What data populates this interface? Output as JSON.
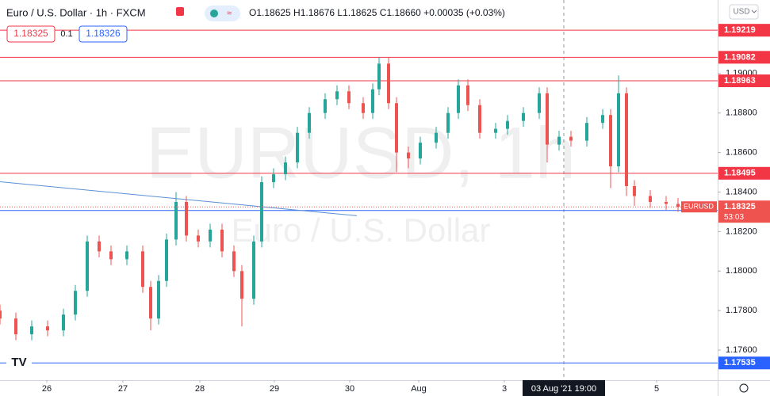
{
  "header": {
    "symbol": "Euro / U.S. Dollar · 1h · FXCM",
    "ohlc": "O1.18625 H1.18676 L1.18625 C1.18660 +0.00035 (+0.03%)",
    "sell": "1.18325",
    "spread": "0.1",
    "buy": "1.18326",
    "currency": "USD"
  },
  "chart_data": {
    "type": "candlestick",
    "watermark": "EURUSD, 1h",
    "watermark_sub": "Euro / U.S. Dollar",
    "up_color": "#26a69a",
    "down_color": "#ef5350",
    "grid": false,
    "xlim": [
      0,
      226.25
    ],
    "ylim": [
      1.17448,
      1.19372
    ],
    "xticks": [
      {
        "value": 14.75,
        "label": "26"
      },
      {
        "value": 38.75,
        "label": "27"
      },
      {
        "value": 63,
        "label": "28"
      },
      {
        "value": 86.5,
        "label": "29"
      },
      {
        "value": 110.25,
        "label": "30"
      },
      {
        "value": 132,
        "label": "Aug"
      },
      {
        "value": 159,
        "label": "3"
      },
      {
        "value": 207,
        "label": "5"
      }
    ],
    "yticks": [
      {
        "value": 1.19,
        "label": "1.19000"
      },
      {
        "value": 1.188,
        "label": "1.18800"
      },
      {
        "value": 1.186,
        "label": "1.18600"
      },
      {
        "value": 1.184,
        "label": "1.18400"
      },
      {
        "value": 1.182,
        "label": "1.18200"
      },
      {
        "value": 1.18,
        "label": "1.18000"
      },
      {
        "value": 1.178,
        "label": "1.17800"
      },
      {
        "value": 1.176,
        "label": "1.17600"
      }
    ],
    "x": [
      0,
      5,
      10,
      15,
      20,
      23.75,
      27.5,
      31.25,
      35,
      40,
      45,
      47.5,
      50,
      52.5,
      55.5,
      58.75,
      62.5,
      66.25,
      70,
      73.75,
      76.25,
      80,
      82.5,
      86.25,
      90,
      93.75,
      97.5,
      102.5,
      106.25,
      110,
      114.5,
      117.5,
      119.5,
      122.5,
      125,
      128.75,
      132.5,
      137.5,
      141.25,
      144.5,
      147.5,
      151.25,
      156.25,
      160,
      165,
      170,
      172.5,
      176.25,
      180,
      185,
      190,
      192.5,
      195,
      197.5,
      200,
      205,
      210,
      213.75
    ],
    "open": [
      1.178,
      1.1776,
      1.1768,
      1.1772,
      1.177,
      1.1778,
      1.179,
      1.1815,
      1.181,
      1.1806,
      1.181,
      1.1792,
      1.1776,
      1.1795,
      1.1816,
      1.1835,
      1.1818,
      1.1815,
      1.1821,
      1.181,
      1.18,
      1.1786,
      1.1815,
      1.1845,
      1.1849,
      1.1855,
      1.187,
      1.188,
      1.1887,
      1.1891,
      1.1885,
      1.188,
      1.1892,
      1.1905,
      1.1885,
      1.186,
      1.1857,
      1.1865,
      1.187,
      1.188,
      1.1894,
      1.1884,
      1.187,
      1.1872,
      1.1876,
      1.188,
      1.189,
      1.1864,
      1.1868,
      1.1866,
      1.1875,
      1.1879,
      1.1853,
      1.189,
      1.1843,
      1.1838,
      1.1835,
      1.1834
    ],
    "high": [
      1.1783,
      1.1779,
      1.1775,
      1.1775,
      1.1781,
      1.1793,
      1.1818,
      1.1818,
      1.1813,
      1.1813,
      1.1813,
      1.1795,
      1.1798,
      1.1819,
      1.184,
      1.1838,
      1.1821,
      1.1824,
      1.1824,
      1.1813,
      1.1803,
      1.1818,
      1.1848,
      1.1852,
      1.1858,
      1.1873,
      1.1883,
      1.189,
      1.1894,
      1.1894,
      1.1888,
      1.1895,
      1.19082,
      1.1908,
      1.1888,
      1.1863,
      1.1868,
      1.1873,
      1.1883,
      1.1897,
      1.1897,
      1.1887,
      1.1875,
      1.1879,
      1.1883,
      1.1893,
      1.1893,
      1.1871,
      1.1871,
      1.1878,
      1.1882,
      1.1882,
      1.1899,
      1.1893,
      1.1846,
      1.1841,
      1.1838,
      1.1837
    ],
    "low": [
      1.1773,
      1.1765,
      1.1765,
      1.1767,
      1.1767,
      1.1775,
      1.1787,
      1.1807,
      1.1803,
      1.1803,
      1.1789,
      1.177,
      1.1773,
      1.1792,
      1.1813,
      1.1815,
      1.1812,
      1.1812,
      1.1807,
      1.1797,
      1.1772,
      1.1783,
      1.1812,
      1.1842,
      1.1846,
      1.1852,
      1.1867,
      1.1877,
      1.1884,
      1.1882,
      1.1877,
      1.1877,
      1.1889,
      1.1882,
      1.185,
      1.1852,
      1.1854,
      1.1862,
      1.1867,
      1.1877,
      1.1881,
      1.1867,
      1.1867,
      1.1869,
      1.1873,
      1.1877,
      1.1855,
      1.1861,
      1.1863,
      1.1863,
      1.1872,
      1.1842,
      1.185,
      1.1838,
      1.1833,
      1.1832,
      1.1831,
      1.183
    ],
    "close": [
      1.1776,
      1.1768,
      1.1772,
      1.177,
      1.1778,
      1.179,
      1.1815,
      1.181,
      1.1806,
      1.181,
      1.1792,
      1.1776,
      1.1795,
      1.1816,
      1.1835,
      1.1818,
      1.1815,
      1.1821,
      1.181,
      1.18,
      1.1786,
      1.1815,
      1.1845,
      1.1849,
      1.1855,
      1.187,
      1.188,
      1.1887,
      1.1891,
      1.1885,
      1.188,
      1.1892,
      1.1905,
      1.1885,
      1.186,
      1.1857,
      1.1865,
      1.187,
      1.188,
      1.1894,
      1.1884,
      1.187,
      1.1872,
      1.1876,
      1.188,
      1.189,
      1.1864,
      1.1868,
      1.1866,
      1.1875,
      1.1879,
      1.1853,
      1.189,
      1.1843,
      1.1838,
      1.1835,
      1.1834,
      1.18325
    ],
    "levels": [
      {
        "value": 1.19219,
        "color": "#f23645"
      },
      {
        "value": 1.19082,
        "color": "#f23645"
      },
      {
        "value": 1.18963,
        "color": "#f23645"
      },
      {
        "value": 1.18495,
        "color": "#f23645"
      },
      {
        "value": 1.18307,
        "color": "#2962ff"
      },
      {
        "value": 1.17535,
        "color": "#2962ff"
      }
    ],
    "last": {
      "value": 1.18325,
      "name": "EURUSD",
      "countdown": "53:03",
      "color": "#ef5350"
    },
    "trendline": {
      "x": [
        0,
        112.5
      ],
      "y": [
        1.18452,
        1.1828
      ],
      "color": "#5b8fd6"
    },
    "crosshair": {
      "x": 177.75,
      "label": "03 Aug '21 19:00"
    }
  }
}
